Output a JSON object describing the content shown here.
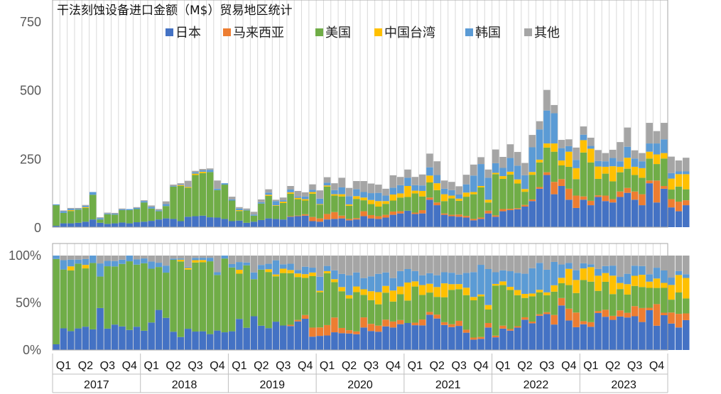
{
  "chart_data": {
    "type": "bar",
    "title": "干法刻蚀设备进口金额（M$）贸易地区统计",
    "top_axis": {
      "ticks": [
        "0",
        "250",
        "500",
        "750"
      ],
      "ylim": [
        0,
        750
      ]
    },
    "bottom_axis": {
      "ticks": [
        "0%",
        "50%",
        "100%"
      ],
      "ylim": [
        0,
        1
      ]
    },
    "quarter_labels": [
      "Q1",
      "Q2",
      "Q3",
      "Q4"
    ],
    "years": [
      "2017",
      "2018",
      "2019",
      "2020",
      "2021",
      "2022",
      "2023"
    ],
    "legend": [
      "日本",
      "马来西亚",
      "美国",
      "中国台湾",
      "韩国",
      "其他"
    ],
    "colors": [
      "#4472C4",
      "#ED7D31",
      "#70AD47",
      "#FFC000",
      "#5B9BD5",
      "#A5A5A5"
    ],
    "grid": true,
    "months_per_year": 12,
    "series": [
      {
        "name": "日本",
        "values": [
          5,
          14,
          14,
          16,
          20,
          28,
          16,
          12,
          14,
          17,
          14,
          18,
          20,
          23,
          28,
          32,
          30,
          22,
          38,
          40,
          42,
          36,
          35,
          30,
          22,
          24,
          16,
          20,
          26,
          32,
          30,
          28,
          38,
          40,
          42,
          22,
          20,
          28,
          30,
          32,
          25,
          28,
          40,
          32,
          30,
          35,
          45,
          50,
          60,
          48,
          50,
          100,
          80,
          45,
          40,
          38,
          35,
          25,
          30,
          50,
          38,
          58,
          62,
          65,
          75,
          95,
          140,
          190,
          120,
          150,
          100,
          70,
          100,
          80,
          110,
          95,
          90,
          110,
          125,
          100,
          80,
          160,
          90,
          140,
          72,
          58,
          80
        ]
      },
      {
        "name": "马来西亚",
        "values": [
          0,
          0,
          0,
          0,
          0,
          0,
          0,
          0,
          0,
          0,
          0,
          0,
          0,
          0,
          0,
          0,
          0,
          0,
          0,
          0,
          0,
          0,
          0,
          0,
          0,
          0,
          0,
          0,
          0,
          0,
          0,
          0,
          2,
          2,
          5,
          15,
          12,
          20,
          25,
          10,
          5,
          5,
          18,
          12,
          10,
          10,
          12,
          8,
          0,
          5,
          12,
          8,
          10,
          5,
          5,
          8,
          6,
          5,
          5,
          10,
          5,
          8,
          5,
          4,
          6,
          6,
          6,
          10,
          45,
          25,
          40,
          45,
          12,
          16,
          6,
          20,
          12,
          20,
          18,
          30,
          40,
          10,
          80,
          10,
          30,
          35,
          18
        ]
      },
      {
        "name": "美国",
        "values": [
          75,
          38,
          45,
          48,
          50,
          90,
          12,
          35,
          32,
          45,
          48,
          48,
          70,
          45,
          30,
          45,
          118,
          128,
          106,
          150,
          155,
          165,
          100,
          125,
          75,
          35,
          45,
          22,
          60,
          82,
          48,
          60,
          82,
          60,
          50,
          85,
          50,
          100,
          60,
          70,
          48,
          70,
          40,
          40,
          35,
          40,
          40,
          50,
          50,
          70,
          50,
          55,
          45,
          45,
          60,
          50,
          70,
          90,
          110,
          30,
          150,
          110,
          125,
          90,
          48,
          90,
          90,
          90,
          110,
          50,
          80,
          60,
          160,
          140,
          60,
          80,
          65,
          70,
          70,
          60,
          60,
          80,
          60,
          100,
          35,
          55,
          40
        ]
      },
      {
        "name": "中国台湾",
        "values": [
          0,
          0,
          3,
          0,
          3,
          0,
          0,
          0,
          0,
          0,
          0,
          0,
          0,
          0,
          0,
          0,
          0,
          3,
          3,
          5,
          5,
          0,
          0,
          0,
          0,
          3,
          0,
          0,
          0,
          4,
          2,
          5,
          5,
          5,
          5,
          6,
          2,
          4,
          5,
          8,
          5,
          10,
          10,
          15,
          20,
          10,
          22,
          15,
          40,
          10,
          20,
          25,
          25,
          25,
          10,
          8,
          15,
          8,
          5,
          10,
          5,
          10,
          10,
          15,
          10,
          10,
          10,
          15,
          30,
          18,
          55,
          40,
          45,
          50,
          45,
          25,
          55,
          20,
          40,
          30,
          35,
          25,
          35,
          20,
          40,
          45,
          55
        ]
      },
      {
        "name": "韩国",
        "values": [
          3,
          6,
          5,
          3,
          5,
          10,
          5,
          3,
          3,
          3,
          4,
          4,
          5,
          6,
          3,
          7,
          2,
          2,
          2,
          5,
          5,
          8,
          5,
          5,
          4,
          6,
          2,
          4,
          5,
          8,
          15,
          5,
          10,
          5,
          10,
          8,
          20,
          10,
          15,
          25,
          30,
          25,
          20,
          25,
          30,
          20,
          25,
          30,
          30,
          20,
          20,
          30,
          30,
          20,
          20,
          15,
          30,
          60,
          80,
          80,
          35,
          30,
          50,
          50,
          50,
          90,
          110,
          120,
          110,
          45,
          20,
          30,
          20,
          10,
          20,
          20,
          30,
          20,
          40,
          30,
          25,
          30,
          40,
          50,
          20,
          10,
          10
        ]
      },
      {
        "name": "其他",
        "values": [
          0,
          3,
          3,
          3,
          3,
          0,
          3,
          3,
          3,
          3,
          0,
          3,
          3,
          5,
          5,
          10,
          5,
          5,
          20,
          5,
          5,
          5,
          30,
          0,
          10,
          5,
          5,
          10,
          10,
          12,
          5,
          10,
          13,
          20,
          15,
          20,
          30,
          20,
          25,
          35,
          30,
          30,
          40,
          35,
          30,
          25,
          45,
          30,
          30,
          30,
          40,
          50,
          50,
          30,
          30,
          30,
          35,
          40,
          25,
          30,
          50,
          40,
          50,
          50,
          45,
          45,
          30,
          75,
          30,
          30,
          25,
          45,
          30,
          30,
          40,
          30,
          30,
          70,
          70,
          30,
          30,
          75,
          45,
          60,
          60,
          40,
          50
        ]
      }
    ]
  }
}
